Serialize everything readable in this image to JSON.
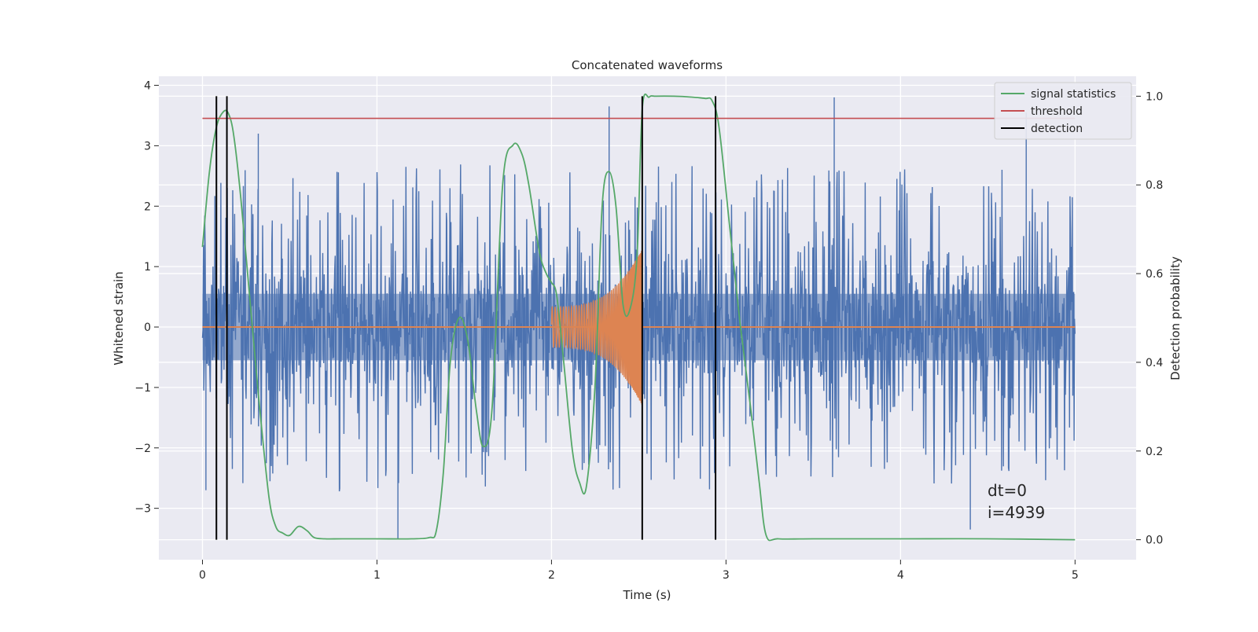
{
  "chart_data": {
    "type": "line",
    "title": "Concatenated waveforms",
    "xlabel": "Time (s)",
    "ylabel_left": "Whitened strain",
    "ylabel_right": "Detection probability",
    "xlim": [
      -0.25,
      5.35
    ],
    "ylim_left": [
      -3.85,
      4.15
    ],
    "ylim_right": [
      -0.045,
      1.045
    ],
    "xticks": [
      0,
      1,
      2,
      3,
      4,
      5
    ],
    "xtick_labels": [
      "0",
      "1",
      "2",
      "3",
      "4",
      "5"
    ],
    "yticks_left": [
      -3,
      -2,
      -1,
      0,
      1,
      2,
      3,
      4
    ],
    "ytick_labels_left": [
      "−3",
      "−2",
      "−1",
      "0",
      "1",
      "2",
      "3",
      "4"
    ],
    "yticks_right": [
      0.0,
      0.2,
      0.4,
      0.6,
      0.8,
      1.0
    ],
    "ytick_labels_right": [
      "0.0",
      "0.2",
      "0.4",
      "0.6",
      "0.8",
      "1.0"
    ],
    "grid": true,
    "legend_position": "top-right",
    "series": [
      {
        "name": "",
        "kind": "whitened-strain-noise",
        "axis": "left",
        "color": "#4c72b0",
        "x_range": [
          0,
          5
        ],
        "core_amplitude": 0.55,
        "approx_extremes": [
          {
            "x": 0.02,
            "y": -2.7
          },
          {
            "x": 0.32,
            "y": 3.2
          },
          {
            "x": 1.12,
            "y": -3.5
          },
          {
            "x": 2.33,
            "y": 3.65
          },
          {
            "x": 3.62,
            "y": 3.8
          },
          {
            "x": 4.4,
            "y": -3.35
          },
          {
            "x": 4.72,
            "y": 3.55
          }
        ]
      },
      {
        "name": "",
        "kind": "injected-chirp",
        "axis": "left",
        "color": "#dd8452",
        "x_range": [
          0,
          5
        ],
        "chirp_start": 2.0,
        "chirp_end": 2.52,
        "start_amplitude": 0.33,
        "end_amplitude": 1.3
      },
      {
        "name": "signal statistics",
        "axis": "right",
        "color": "#55a868",
        "x": [
          0.0,
          0.04,
          0.08,
          0.12,
          0.15,
          0.18,
          0.22,
          0.27,
          0.32,
          0.38,
          0.42,
          0.46,
          0.5,
          0.55,
          0.6,
          0.64,
          0.7,
          0.8,
          1.0,
          1.2,
          1.3,
          1.34,
          1.38,
          1.42,
          1.47,
          1.52,
          1.57,
          1.61,
          1.66,
          1.72,
          1.78,
          1.83,
          1.87,
          1.93,
          1.97,
          2.0,
          2.03,
          2.07,
          2.12,
          2.16,
          2.2,
          2.25,
          2.29,
          2.33,
          2.37,
          2.41,
          2.45,
          2.49,
          2.52,
          2.56,
          2.6,
          2.7,
          2.8,
          2.88,
          2.92,
          2.96,
          3.02,
          3.08,
          3.14,
          3.19,
          3.23,
          3.3,
          3.5,
          4.0,
          4.5,
          5.0
        ],
        "y": [
          0.66,
          0.83,
          0.93,
          0.965,
          0.96,
          0.91,
          0.77,
          0.55,
          0.33,
          0.1,
          0.03,
          0.015,
          0.01,
          0.03,
          0.02,
          0.005,
          0.002,
          0.002,
          0.002,
          0.002,
          0.005,
          0.02,
          0.15,
          0.4,
          0.5,
          0.45,
          0.29,
          0.21,
          0.3,
          0.8,
          0.89,
          0.87,
          0.8,
          0.65,
          0.6,
          0.58,
          0.55,
          0.4,
          0.2,
          0.13,
          0.12,
          0.35,
          0.75,
          0.83,
          0.75,
          0.53,
          0.52,
          0.64,
          0.97,
          0.998,
          1.0,
          1.0,
          0.998,
          0.995,
          0.99,
          0.93,
          0.71,
          0.49,
          0.3,
          0.13,
          0.01,
          0.002,
          0.002,
          0.002,
          0.002,
          0.0
        ]
      },
      {
        "name": "threshold",
        "axis": "right",
        "color": "#c44e52",
        "x": [
          0,
          5
        ],
        "y": [
          0.95,
          0.95
        ]
      },
      {
        "name": "detection",
        "axis": "right",
        "color": "#000000",
        "vlines": [
          0.08,
          0.14,
          2.52,
          2.94
        ],
        "y_range": [
          0.0,
          1.0
        ]
      }
    ],
    "annotation": [
      "dt=0",
      "i=4939"
    ]
  }
}
